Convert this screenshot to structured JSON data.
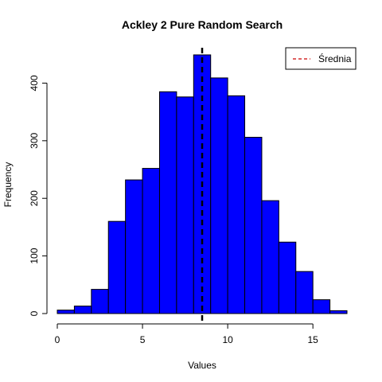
{
  "chart_data": {
    "type": "histogram",
    "title": "Ackley 2 Pure Random Search",
    "xlabel": "Values",
    "ylabel": "Frequency",
    "bin_width": 1,
    "bins": [
      {
        "x0": 0,
        "x1": 1,
        "count": 6
      },
      {
        "x0": 1,
        "x1": 2,
        "count": 13
      },
      {
        "x0": 2,
        "x1": 3,
        "count": 42
      },
      {
        "x0": 3,
        "x1": 4,
        "count": 160
      },
      {
        "x0": 4,
        "x1": 5,
        "count": 232
      },
      {
        "x0": 5,
        "x1": 6,
        "count": 252
      },
      {
        "x0": 6,
        "x1": 7,
        "count": 385
      },
      {
        "x0": 7,
        "x1": 8,
        "count": 376
      },
      {
        "x0": 8,
        "x1": 9,
        "count": 449
      },
      {
        "x0": 9,
        "x1": 10,
        "count": 409
      },
      {
        "x0": 10,
        "x1": 11,
        "count": 378
      },
      {
        "x0": 11,
        "x1": 12,
        "count": 306
      },
      {
        "x0": 12,
        "x1": 13,
        "count": 196
      },
      {
        "x0": 13,
        "x1": 14,
        "count": 124
      },
      {
        "x0": 14,
        "x1": 15,
        "count": 73
      },
      {
        "x0": 15,
        "x1": 16,
        "count": 24
      },
      {
        "x0": 16,
        "x1": 17,
        "count": 5
      }
    ],
    "mean": 8.5,
    "xlim": [
      0,
      17
    ],
    "ylim": [
      0,
      460
    ],
    "xticks": [
      0,
      5,
      10,
      15
    ],
    "yticks": [
      0,
      100,
      200,
      300,
      400
    ],
    "bar_color": "#0000ff",
    "mean_line_color": "#000000",
    "legend": {
      "position": "top-right",
      "entries": [
        {
          "label": "Średnia",
          "line_color": "#cc0000",
          "line_style": "dashed"
        }
      ]
    }
  }
}
